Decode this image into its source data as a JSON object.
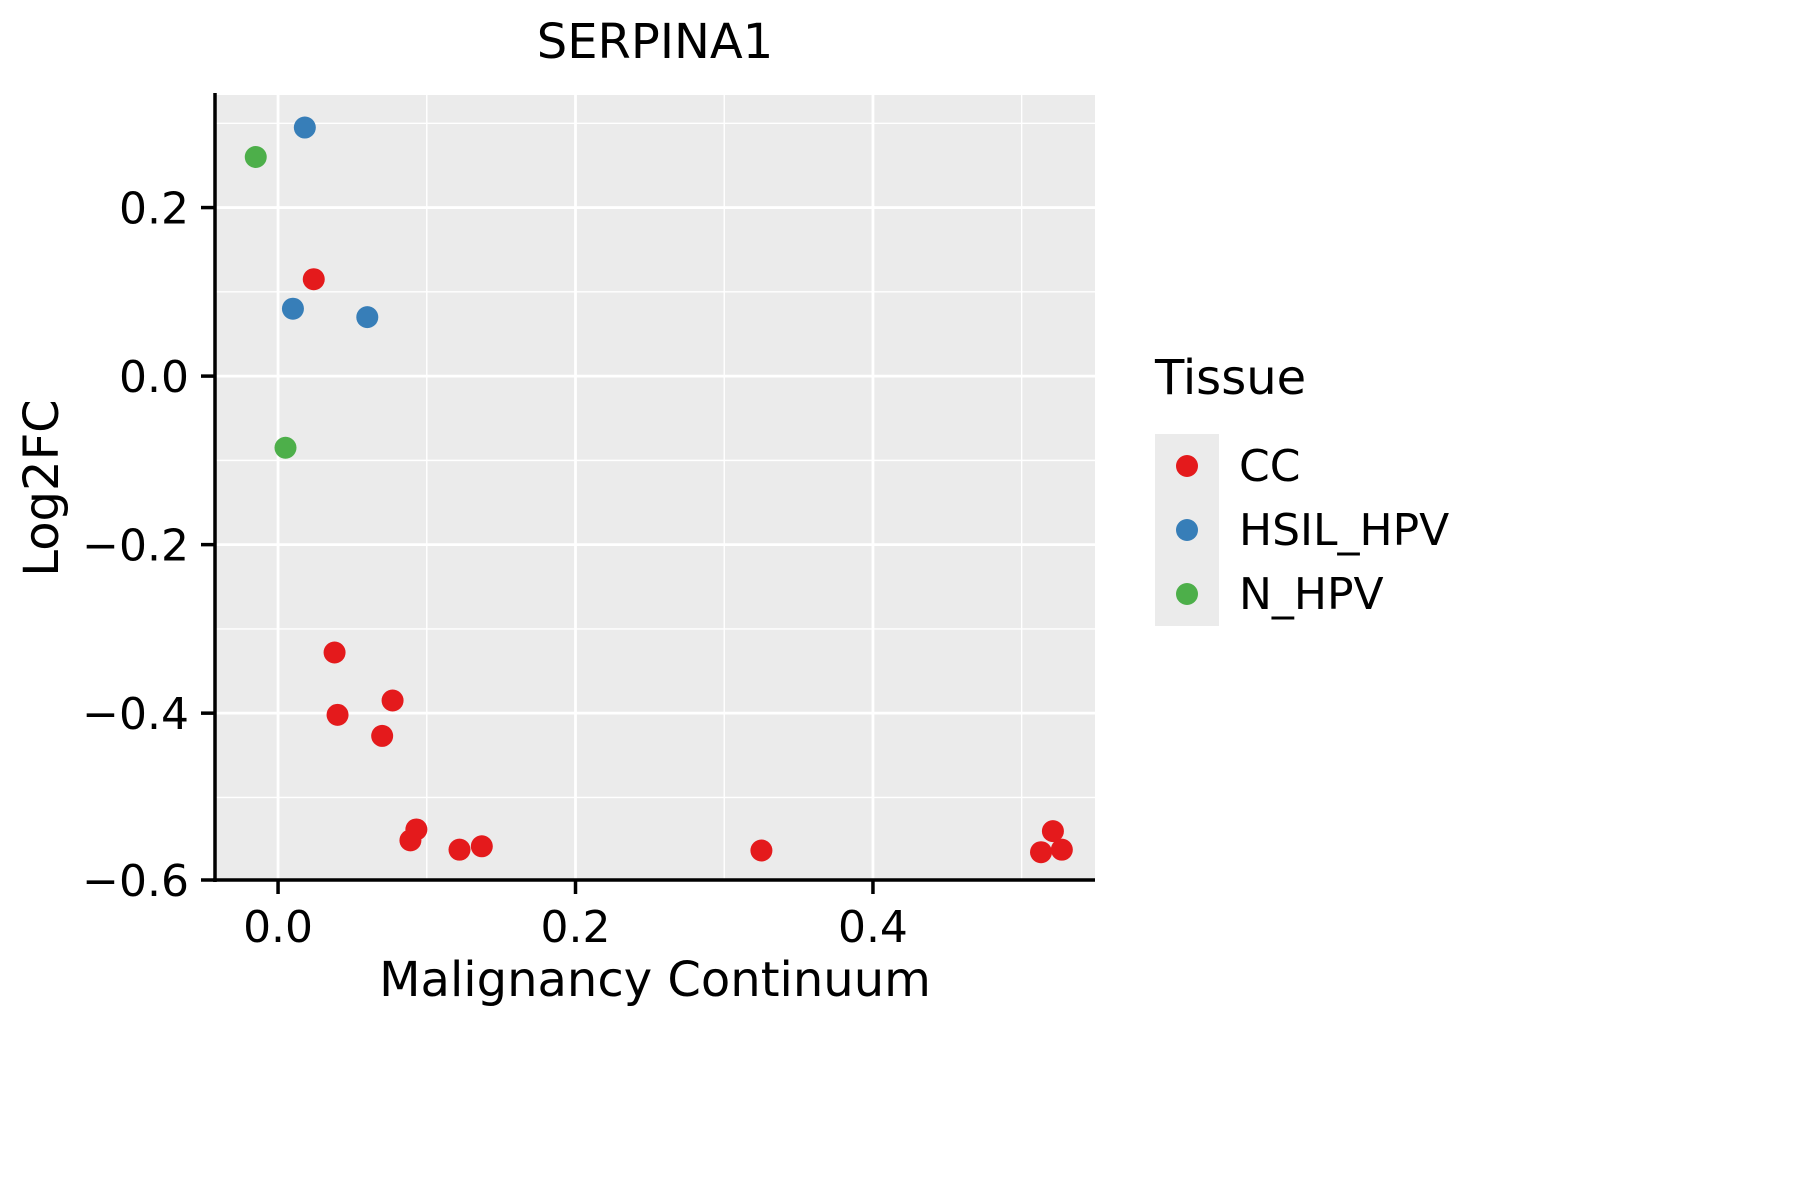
{
  "chart_data": {
    "type": "scatter",
    "title": "SERPINA1",
    "xlabel": "Malignancy Continuum",
    "ylabel": "Log2FC",
    "xlim": [
      -0.0424,
      0.5493
    ],
    "ylim": [
      -0.598,
      0.3336
    ],
    "grid": true,
    "panel_bg": "#EBEBEB",
    "gridline_color": "#FFFFFF",
    "axis_color": "#000000",
    "x_ticks": {
      "values": [
        0.0,
        0.2,
        0.4
      ],
      "labels": [
        "0.0",
        "0.2",
        "0.4"
      ],
      "minor": [
        0.1,
        0.3,
        0.5
      ]
    },
    "y_ticks": {
      "values": [
        0.2,
        0.0,
        -0.2,
        -0.4,
        -0.6
      ],
      "labels": [
        "0.2",
        "0.0",
        "−0.2",
        "−0.4",
        "−0.6"
      ],
      "minor": [
        0.3,
        0.1,
        -0.1,
        -0.3,
        -0.5
      ]
    },
    "legend": {
      "title": "Tissue",
      "position": "right"
    },
    "series": [
      {
        "name": "CC",
        "color": "#E41A1C",
        "points": [
          [
            0.024,
            0.115
          ],
          [
            0.038,
            -0.328
          ],
          [
            0.04,
            -0.402
          ],
          [
            0.07,
            -0.427
          ],
          [
            0.077,
            -0.385
          ],
          [
            0.089,
            -0.551
          ],
          [
            0.093,
            -0.538
          ],
          [
            0.122,
            -0.562
          ],
          [
            0.137,
            -0.558
          ],
          [
            0.325,
            -0.563
          ],
          [
            0.513,
            -0.565
          ],
          [
            0.521,
            -0.54
          ],
          [
            0.527,
            -0.562
          ]
        ]
      },
      {
        "name": "HSIL_HPV",
        "color": "#377EB8",
        "points": [
          [
            0.01,
            0.08
          ],
          [
            0.018,
            0.295
          ],
          [
            0.06,
            0.07
          ]
        ]
      },
      {
        "name": "N_HPV",
        "color": "#4DAF4A",
        "points": [
          [
            -0.015,
            0.26
          ],
          [
            0.005,
            -0.085
          ]
        ]
      }
    ]
  }
}
